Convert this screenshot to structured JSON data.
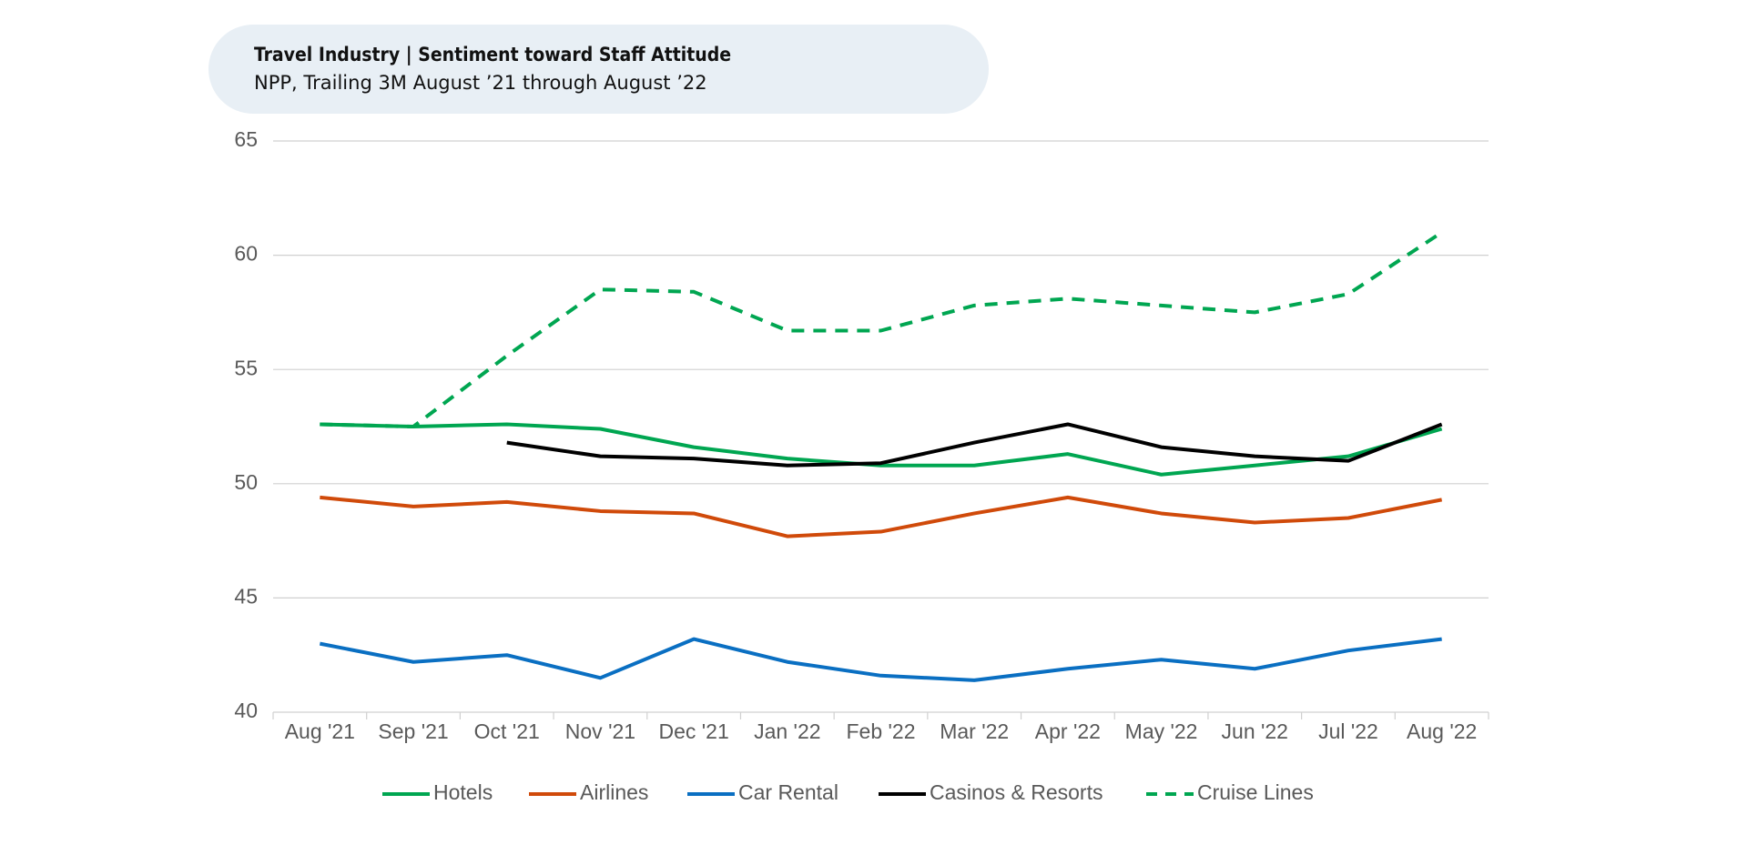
{
  "chart_data": {
    "type": "line",
    "title": "Travel Industry | Sentiment toward Staff Attitude",
    "subtitle": "NPP, Trailing 3M August ’21 through August ’22",
    "categories": [
      "Aug '21",
      "Sep '21",
      "Oct '21",
      "Nov '21",
      "Dec '21",
      "Jan '22",
      "Feb '22",
      "Mar '22",
      "Apr '22",
      "May '22",
      "Jun '22",
      "Jul '22",
      "Aug '22"
    ],
    "series": [
      {
        "name": "Hotels",
        "color": "#00a651",
        "line_style": "solid",
        "values": [
          52.6,
          52.5,
          52.6,
          52.4,
          51.6,
          51.1,
          50.8,
          50.8,
          51.3,
          50.4,
          50.8,
          51.2,
          52.4
        ]
      },
      {
        "name": "Airlines",
        "color": "#d04a0a",
        "line_style": "solid",
        "values": [
          49.4,
          49.0,
          49.2,
          48.8,
          48.7,
          47.7,
          47.9,
          48.7,
          49.4,
          48.7,
          48.3,
          48.5,
          49.3
        ]
      },
      {
        "name": "Car Rental",
        "color": "#0a6fc2",
        "line_style": "solid",
        "values": [
          43.0,
          42.2,
          42.5,
          41.5,
          43.2,
          42.2,
          41.6,
          41.4,
          41.9,
          42.3,
          41.9,
          42.7,
          43.2
        ]
      },
      {
        "name": "Casinos & Resorts",
        "color": "#000000",
        "line_style": "solid",
        "values": [
          null,
          null,
          51.8,
          51.2,
          51.1,
          50.8,
          50.9,
          51.8,
          52.6,
          51.6,
          51.2,
          51.0,
          52.6
        ]
      },
      {
        "name": "Cruise Lines",
        "color": "#00a651",
        "line_style": "dashed",
        "values": [
          52.6,
          52.5,
          55.6,
          58.5,
          58.4,
          56.7,
          56.7,
          57.8,
          58.1,
          57.8,
          57.5,
          58.3,
          61.0
        ]
      }
    ],
    "ylim": [
      40,
      65
    ],
    "yticks": [
      40,
      45,
      50,
      55,
      60,
      65
    ],
    "grid": true,
    "legend": "bottom"
  }
}
